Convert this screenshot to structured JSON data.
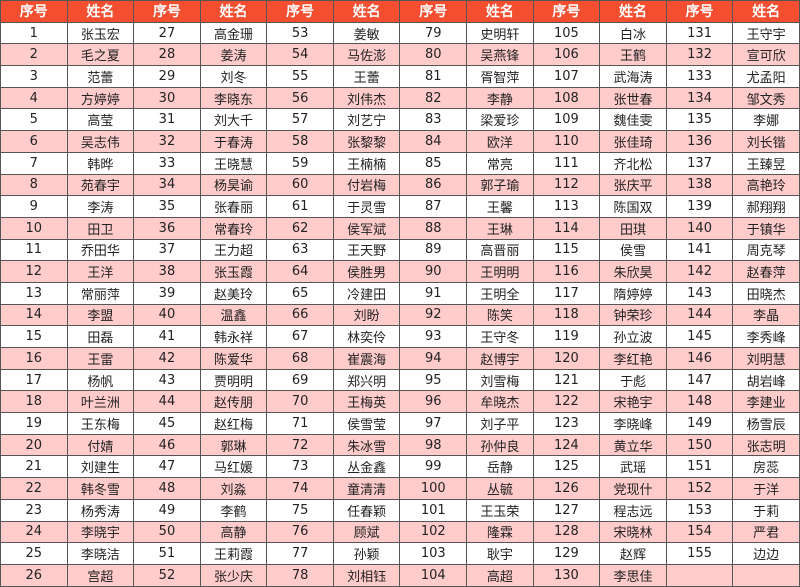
{
  "header": {
    "no_label": "序号",
    "name_label": "姓名"
  },
  "colors": {
    "header_bg": "#f24e2f",
    "header_text": "#ffffff",
    "alt_row_bg": "#ffcccb",
    "border": "#555555"
  },
  "groups": [
    {
      "nos": [
        "1",
        "2",
        "3",
        "4",
        "5",
        "6",
        "7",
        "8",
        "9",
        "10",
        "11",
        "12",
        "13",
        "14",
        "15",
        "16",
        "17",
        "18",
        "19",
        "20",
        "21",
        "22",
        "23",
        "24",
        "25",
        "26"
      ],
      "names": [
        "张玉宏",
        "毛之夏",
        "范蕾",
        "方婷婷",
        "高莹",
        "吴志伟",
        "韩晔",
        "苑春宇",
        "李涛",
        "田卫",
        "乔田华",
        "王洋",
        "常丽萍",
        "李盟",
        "田磊",
        "王雷",
        "杨帆",
        "叶兰洲",
        "王东梅",
        "付婧",
        "刘建生",
        "韩冬雪",
        "杨秀涛",
        "李晓宇",
        "李晓洁",
        "宫超"
      ]
    },
    {
      "nos": [
        "27",
        "28",
        "29",
        "30",
        "31",
        "32",
        "33",
        "34",
        "35",
        "36",
        "37",
        "38",
        "39",
        "40",
        "41",
        "42",
        "43",
        "44",
        "45",
        "46",
        "47",
        "48",
        "49",
        "50",
        "51",
        "52"
      ],
      "names": [
        "高金珊",
        "姜涛",
        "刘冬",
        "李晓东",
        "刘大千",
        "于春涛",
        "王晓慧",
        "杨昊谕",
        "张春丽",
        "常春玲",
        "王力超",
        "张玉霞",
        "赵美玲",
        "温鑫",
        "韩永祥",
        "陈爱华",
        "贾明明",
        "赵传朋",
        "赵红梅",
        "郭琳",
        "马红媛",
        "刘淼",
        "李鹤",
        "高静",
        "王莉霞",
        "张少庆"
      ]
    },
    {
      "nos": [
        "53",
        "54",
        "55",
        "56",
        "57",
        "58",
        "59",
        "60",
        "61",
        "62",
        "63",
        "64",
        "65",
        "66",
        "67",
        "68",
        "69",
        "70",
        "71",
        "72",
        "73",
        "74",
        "75",
        "76",
        "77",
        "78"
      ],
      "names": [
        "姜敏",
        "马佐澎",
        "王蕾",
        "刘伟杰",
        "刘艺宁",
        "张黎黎",
        "王楠楠",
        "付岩梅",
        "于灵雪",
        "侯军斌",
        "王天野",
        "侯胜男",
        "冷建田",
        "刘盼",
        "林奕伶",
        "崔震海",
        "郑兴明",
        "王梅英",
        "侯雪莹",
        "朱冰雪",
        "丛金鑫",
        "童清清",
        "任春颖",
        "顾斌",
        "孙颖",
        "刘相钰"
      ]
    },
    {
      "nos": [
        "79",
        "80",
        "81",
        "82",
        "83",
        "84",
        "85",
        "86",
        "87",
        "88",
        "89",
        "90",
        "91",
        "92",
        "93",
        "94",
        "95",
        "96",
        "97",
        "98",
        "99",
        "100",
        "101",
        "102",
        "103",
        "104"
      ],
      "names": [
        "史明轩",
        "吴燕锋",
        "胥智萍",
        "李静",
        "梁爱珍",
        "欧洋",
        "常亮",
        "郭子瑜",
        "王馨",
        "王琳",
        "高晋丽",
        "王明明",
        "王明全",
        "陈笑",
        "王守冬",
        "赵博宇",
        "刘雪梅",
        "牟晓杰",
        "刘子平",
        "孙仲良",
        "岳静",
        "丛毓",
        "王玉荣",
        "隆霖",
        "耿宇",
        "高超"
      ]
    },
    {
      "nos": [
        "105",
        "106",
        "107",
        "108",
        "109",
        "110",
        "111",
        "112",
        "113",
        "114",
        "115",
        "116",
        "117",
        "118",
        "119",
        "120",
        "121",
        "122",
        "123",
        "124",
        "125",
        "126",
        "127",
        "128",
        "129",
        "130"
      ],
      "names": [
        "白冰",
        "王鹤",
        "武海涛",
        "张世春",
        "魏佳雯",
        "张佳琦",
        "齐北松",
        "张庆平",
        "陈国双",
        "田琪",
        "侯雪",
        "朱欣昊",
        "隋婷婷",
        "钟荣珍",
        "孙立波",
        "李红艳",
        "于彪",
        "宋艳宇",
        "李晓峰",
        "黄立华",
        "武瑶",
        "党现什",
        "程志远",
        "宋晓林",
        "赵辉",
        "李思佳"
      ]
    },
    {
      "nos": [
        "131",
        "132",
        "133",
        "134",
        "135",
        "136",
        "137",
        "138",
        "139",
        "140",
        "141",
        "142",
        "143",
        "144",
        "145",
        "146",
        "147",
        "148",
        "149",
        "150",
        "151",
        "152",
        "153",
        "154",
        "155"
      ],
      "names": [
        "王守宇",
        "宣可欣",
        "尤孟阳",
        "邹文秀",
        "李娜",
        "刘长锴",
        "王臻昱",
        "高艳玲",
        "郝翔翔",
        "于镇华",
        "周克琴",
        "赵春萍",
        "田晓杰",
        "李晶",
        "李秀峰",
        "刘明慧",
        "胡岩峰",
        "李建业",
        "杨雪辰",
        "张志明",
        "房蕊",
        "于洋",
        "于莉",
        "严君",
        "边边"
      ]
    }
  ]
}
